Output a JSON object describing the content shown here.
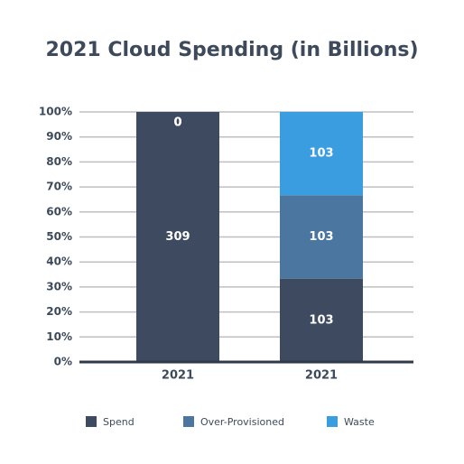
{
  "chart_data": {
    "type": "bar",
    "stacking": "percent",
    "title": "2021 Cloud Spending (in Billions)",
    "categories": [
      "2021",
      "2021"
    ],
    "series": [
      {
        "name": "Spend",
        "color": "#3d4a60",
        "values": [
          309,
          103
        ]
      },
      {
        "name": "Over-Provisioned",
        "color": "#4a76a0",
        "values": [
          0,
          103
        ]
      },
      {
        "name": "Waste",
        "color": "#3a9de0",
        "values": [
          0,
          103
        ]
      }
    ],
    "ylim": [
      0,
      100
    ],
    "yticks": [
      {
        "value": 0,
        "label": "0%"
      },
      {
        "value": 10,
        "label": "10%"
      },
      {
        "value": 20,
        "label": "20%"
      },
      {
        "value": 30,
        "label": "30%"
      },
      {
        "value": 40,
        "label": "40%"
      },
      {
        "value": 50,
        "label": "50%"
      },
      {
        "value": 60,
        "label": "60%"
      },
      {
        "value": 70,
        "label": "70%"
      },
      {
        "value": 80,
        "label": "80%"
      },
      {
        "value": 90,
        "label": "90%"
      },
      {
        "value": 100,
        "label": "100%"
      }
    ],
    "grid": true,
    "legend": "bottom"
  }
}
